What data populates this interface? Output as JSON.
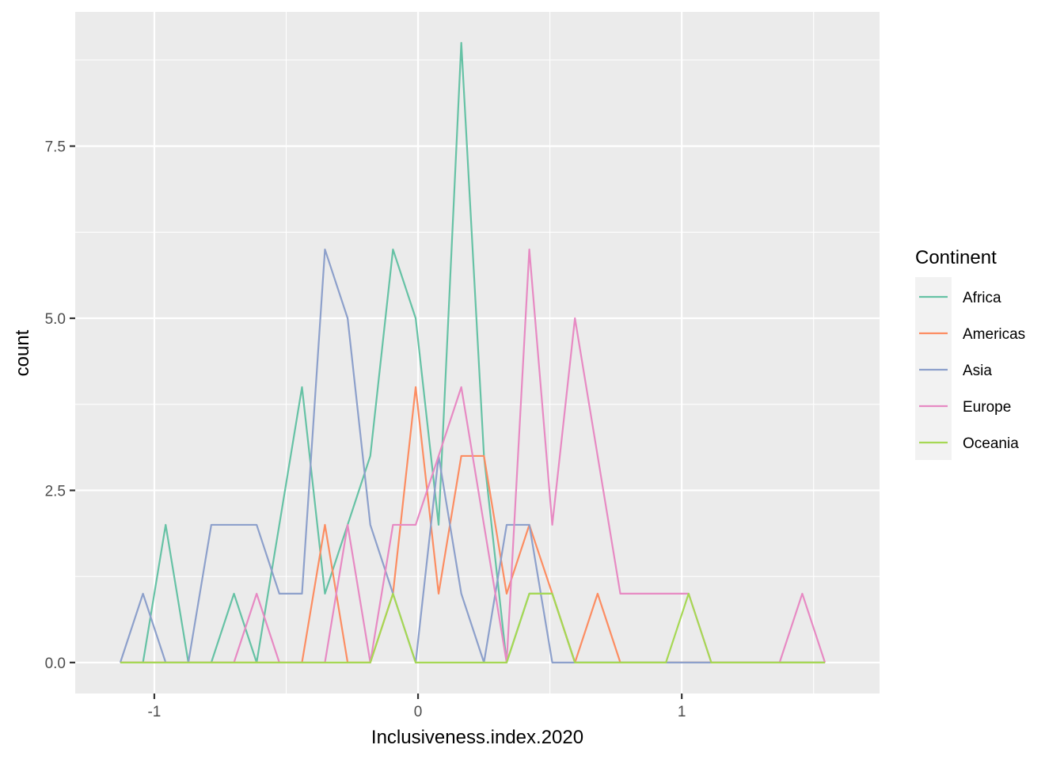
{
  "chart_data": {
    "type": "line",
    "title": "",
    "xlabel": "Inclusiveness.index.2020",
    "ylabel": "count",
    "xlim": [
      -1.3,
      1.75
    ],
    "ylim": [
      -0.45,
      9.45
    ],
    "xticks": [
      -1,
      0,
      1
    ],
    "xtick_labels": [
      "-1",
      "0",
      "1"
    ],
    "yticks": [
      0,
      2.5,
      5,
      7.5
    ],
    "ytick_labels": [
      "0.0",
      "2.5",
      "5.0",
      "7.5"
    ],
    "grid": true,
    "legend": {
      "title": "Continent",
      "position": "right"
    },
    "x": [
      -1.129,
      -1.043,
      -0.957,
      -0.871,
      -0.784,
      -0.698,
      -0.612,
      -0.526,
      -0.44,
      -0.353,
      -0.267,
      -0.181,
      -0.095,
      -0.009,
      0.078,
      0.164,
      0.25,
      0.336,
      0.422,
      0.509,
      0.595,
      0.681,
      0.767,
      0.853,
      0.94,
      1.026,
      1.112,
      1.198,
      1.284,
      1.371,
      1.457,
      1.543
    ],
    "series": [
      {
        "name": "Africa",
        "color": "#66c2a5",
        "values": [
          0,
          0,
          2,
          0,
          0,
          1,
          0,
          2,
          4,
          1,
          2,
          3,
          6,
          5,
          2,
          9,
          3,
          0,
          1,
          1,
          0,
          0,
          0,
          0,
          0,
          0,
          0,
          0,
          0,
          0,
          0,
          0
        ]
      },
      {
        "name": "Americas",
        "color": "#fc8d62",
        "values": [
          0,
          0,
          0,
          0,
          0,
          0,
          0,
          0,
          0,
          2,
          0,
          0,
          1,
          4,
          1,
          3,
          3,
          1,
          2,
          1,
          0,
          1,
          0,
          0,
          0,
          0,
          0,
          0,
          0,
          0,
          0,
          0
        ]
      },
      {
        "name": "Asia",
        "color": "#8da0cb",
        "values": [
          0,
          1,
          0,
          0,
          2,
          2,
          2,
          1,
          1,
          6,
          5,
          2,
          1,
          0,
          3,
          1,
          0,
          2,
          2,
          0,
          0,
          0,
          0,
          0,
          0,
          0,
          0,
          0,
          0,
          0,
          0,
          0
        ]
      },
      {
        "name": "Europe",
        "color": "#e78ac3",
        "values": [
          0,
          0,
          0,
          0,
          0,
          0,
          1,
          0,
          0,
          0,
          2,
          0,
          2,
          2,
          3,
          4,
          2,
          0,
          6,
          2,
          5,
          3,
          1,
          1,
          1,
          1,
          0,
          0,
          0,
          0,
          1,
          0
        ]
      },
      {
        "name": "Oceania",
        "color": "#a6d854",
        "values": [
          0,
          0,
          0,
          0,
          0,
          0,
          0,
          0,
          0,
          0,
          0,
          0,
          1,
          0,
          0,
          0,
          0,
          0,
          1,
          1,
          0,
          0,
          0,
          0,
          0,
          1,
          0,
          0,
          0,
          0,
          0,
          0
        ]
      }
    ]
  }
}
